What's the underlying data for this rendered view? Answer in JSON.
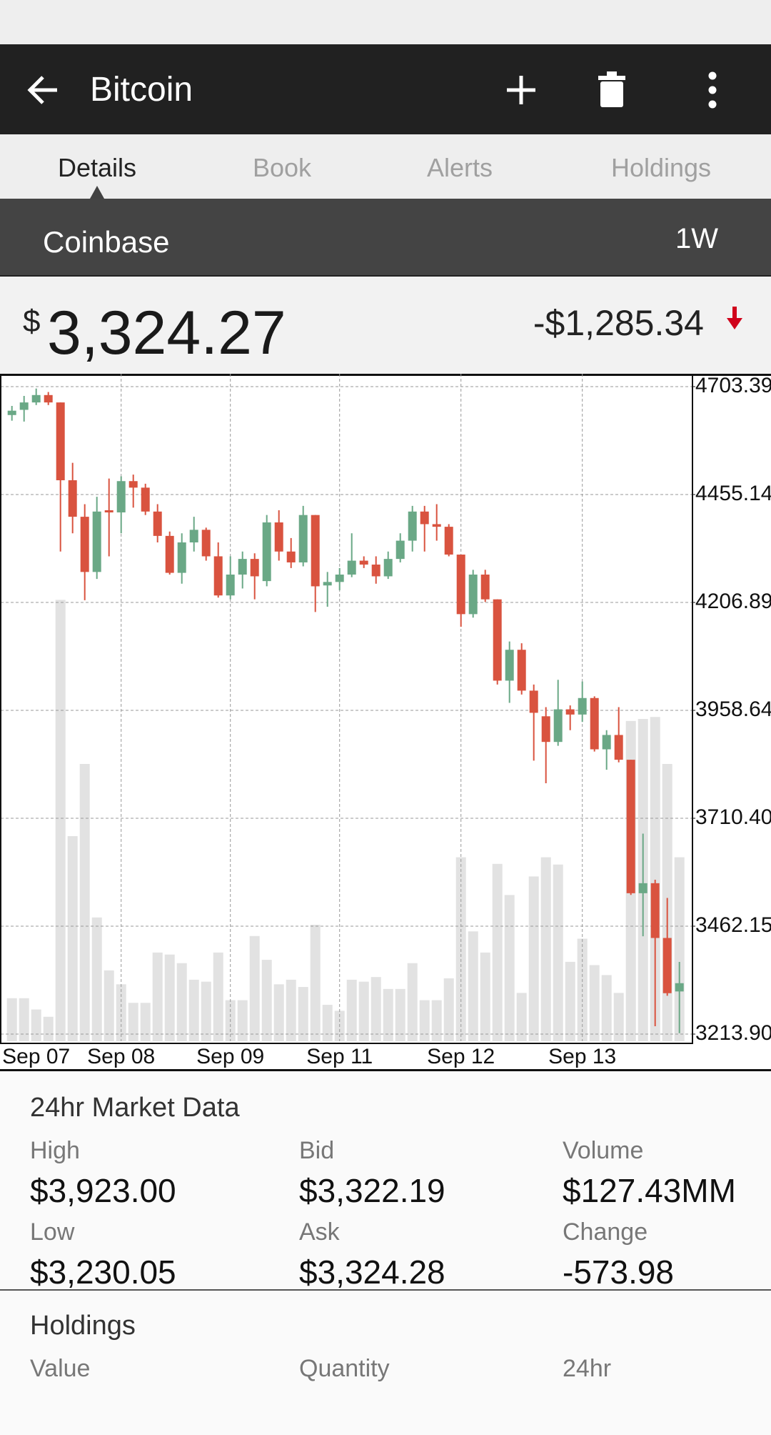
{
  "app_bar": {
    "title": "Bitcoin"
  },
  "tabs": [
    "Details",
    "Book",
    "Alerts",
    "Holdings"
  ],
  "exchange": "Coinbase",
  "range": "1W",
  "price": {
    "currency": "$",
    "value": "3,324.27",
    "change": "-$1,285.34"
  },
  "chart_data": {
    "type": "candlestick",
    "categories": [
      null,
      null,
      "Sep 07",
      null,
      null,
      null,
      null,
      null,
      null,
      "Sep 08",
      null,
      null,
      null,
      null,
      null,
      null,
      null,
      null,
      "Sep 09",
      null,
      null,
      null,
      null,
      null,
      null,
      null,
      null,
      "Sep 11",
      null,
      null,
      null,
      null,
      null,
      null,
      null,
      null,
      null,
      "Sep 12",
      null,
      null,
      null,
      null,
      null,
      null,
      null,
      null,
      null,
      "Sep 13",
      null,
      null,
      null,
      null,
      null,
      null,
      null,
      null
    ],
    "open": [
      4638,
      4650,
      4667,
      4684,
      4667,
      4488,
      4404,
      4277,
      4419,
      4414,
      4486,
      4471,
      4416,
      4360,
      4275,
      4345,
      4374,
      4313,
      4223,
      4271,
      4307,
      4256,
      4391,
      4324,
      4299,
      4408,
      4246,
      4254,
      4271,
      4303,
      4294,
      4267,
      4307,
      4349,
      4416,
      4387,
      4381,
      4317,
      4180,
      4271,
      4214,
      4027,
      4098,
      4004,
      3945,
      3886,
      3961,
      3949,
      3987,
      3869,
      3902,
      3845,
      3538,
      3561,
      3435,
      3312
    ],
    "high": [
      4659,
      4682,
      4699,
      4691,
      4667,
      4528,
      4433,
      4450,
      4492,
      4497,
      4501,
      4480,
      4433,
      4370,
      4366,
      4404,
      4379,
      4345,
      4313,
      4324,
      4320,
      4408,
      4419,
      4355,
      4429,
      4408,
      4277,
      4286,
      4366,
      4313,
      4313,
      4324,
      4366,
      4429,
      4429,
      4433,
      4387,
      4317,
      4282,
      4282,
      4214,
      4117,
      4113,
      4018,
      3966,
      4029,
      3970,
      4025,
      3991,
      3913,
      3966,
      3845,
      3675,
      3569,
      3527,
      3380
    ],
    "low": [
      4625,
      4623,
      4661,
      4661,
      4324,
      4366,
      4212,
      4261,
      4313,
      4366,
      4425,
      4408,
      4345,
      4271,
      4250,
      4324,
      4303,
      4218,
      4214,
      4239,
      4214,
      4244,
      4303,
      4286,
      4290,
      4185,
      4197,
      4235,
      4265,
      4286,
      4250,
      4261,
      4299,
      4324,
      4324,
      4349,
      4313,
      4151,
      4172,
      4208,
      4018,
      3976,
      3995,
      3843,
      3791,
      3877,
      3913,
      3932,
      3864,
      3822,
      3839,
      3534,
      3439,
      3232,
      3302,
      3216
    ],
    "close": [
      4648,
      4667,
      4684,
      4667,
      4488,
      4404,
      4277,
      4416,
      4414,
      4486,
      4471,
      4416,
      4360,
      4275,
      4345,
      4374,
      4313,
      4223,
      4271,
      4307,
      4267,
      4391,
      4324,
      4299,
      4408,
      4244,
      4254,
      4271,
      4303,
      4294,
      4267,
      4307,
      4349,
      4416,
      4387,
      4381,
      4317,
      4180,
      4271,
      4214,
      4027,
      4098,
      4004,
      3953,
      3886,
      3961,
      3949,
      3987,
      3869,
      3902,
      3845,
      3538,
      3561,
      3435,
      3308,
      3331
    ],
    "volume": [
      6.5,
      6.5,
      4.8,
      3.7,
      66.7,
      31,
      41.9,
      18.7,
      10.7,
      8.6,
      5.8,
      5.8,
      13.4,
      13.1,
      11.8,
      9.3,
      9.0,
      13.4,
      6.2,
      6.2,
      15.9,
      12.3,
      8.6,
      9.3,
      8.2,
      17.6,
      5.5,
      4.6,
      9.3,
      9.0,
      9.7,
      7.9,
      7.9,
      11.8,
      6.2,
      6.2,
      9.5,
      27.8,
      16.6,
      13.4,
      26.8,
      22.1,
      7.3,
      24.9,
      27.8,
      26.7,
      12.0,
      15.5,
      11.5,
      10.0,
      7.3,
      48.4,
      48.7,
      49.0,
      41.9,
      27.8
    ],
    "ylim": [
      3213.9,
      4703.39
    ],
    "yticks": [
      {
        "value": 3213.9,
        "label": "3213.90"
      },
      3462.15,
      {
        "value": 3710.4,
        "label": "3710.40"
      },
      3958.64,
      4206.89,
      4455.14,
      4703.39
    ],
    "y2lim": [
      0,
      100
    ],
    "up_color": "#6aa886",
    "down_color": "#d9533f",
    "volume_color": "#e2e2e2",
    "grid": true
  },
  "market_data": {
    "title": "24hr Market Data",
    "items": [
      {
        "label": "High",
        "value": "$3,923.00"
      },
      {
        "label": "Bid",
        "value": "$3,322.19"
      },
      {
        "label": "Volume",
        "value": "$127.43MM"
      },
      {
        "label": "Low",
        "value": "$3,230.05"
      },
      {
        "label": "Ask",
        "value": "$3,324.28"
      },
      {
        "label": "Change",
        "value": "-573.98"
      }
    ]
  },
  "holdings": {
    "title": "Holdings",
    "columns": [
      "Value",
      "Quantity",
      "24hr"
    ]
  }
}
